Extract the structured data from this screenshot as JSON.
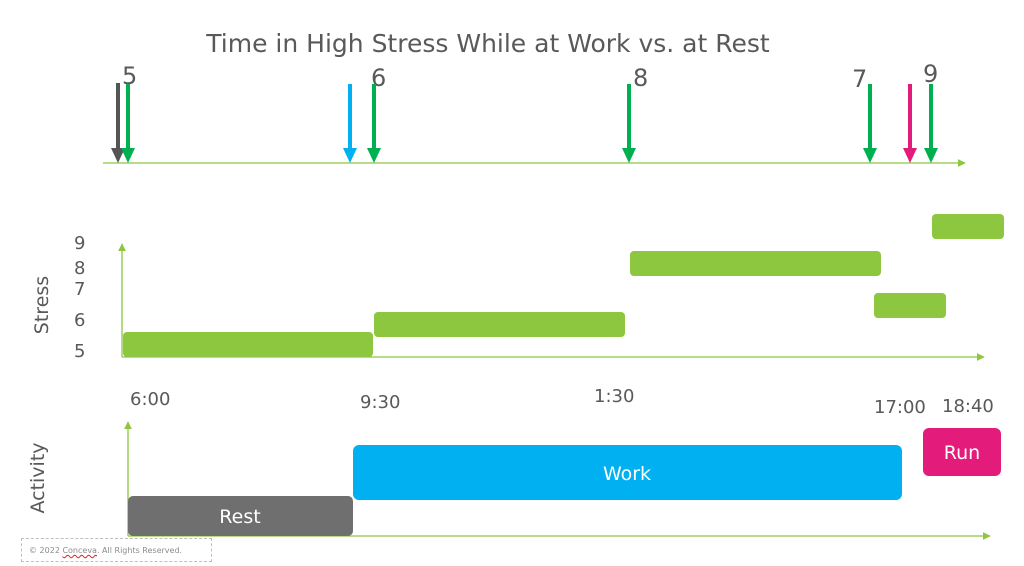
{
  "title": "Time in High Stress While at Work vs. at Rest",
  "colors": {
    "stress_bar": "#8dc63f",
    "axis": "#8dc63f",
    "green_arrow": "#00b050",
    "dark_arrow": "#555555",
    "blue_arrow": "#00b0f0",
    "pink_arrow": "#e31b7b",
    "rest": "#6f6f6f",
    "work": "#00b0f0",
    "run": "#e31b7b",
    "text": "#595959"
  },
  "top_markers": {
    "numbers": [
      "5",
      "6",
      "8",
      "7",
      "9"
    ],
    "arrows": [
      {
        "name": "dark-arrow",
        "color": "dark_arrow"
      },
      {
        "name": "green-arrow-1",
        "color": "green_arrow"
      },
      {
        "name": "blue-arrow",
        "color": "blue_arrow"
      },
      {
        "name": "green-arrow-2",
        "color": "green_arrow"
      },
      {
        "name": "green-arrow-3",
        "color": "green_arrow"
      },
      {
        "name": "green-arrow-4",
        "color": "green_arrow"
      },
      {
        "name": "pink-arrow",
        "color": "pink_arrow"
      },
      {
        "name": "green-arrow-5",
        "color": "green_arrow"
      }
    ]
  },
  "stress_panel": {
    "ylabel": "Stress",
    "ytick_labels": [
      "9",
      "8",
      "7",
      "6",
      "5"
    ],
    "bars": [
      {
        "level": 5
      },
      {
        "level": 6
      },
      {
        "level": 8
      },
      {
        "level": 7
      },
      {
        "level": 9
      }
    ]
  },
  "time_labels": [
    "6:00",
    "9:30",
    "1:30",
    "17:00",
    "18:40"
  ],
  "activity_panel": {
    "ylabel": "Activity",
    "bars": [
      {
        "label": "Rest",
        "color": "rest"
      },
      {
        "label": "Work",
        "color": "work"
      },
      {
        "label": "Run",
        "color": "run"
      }
    ]
  },
  "footer": {
    "prefix": "© 2022 ",
    "brand": "Conceva",
    "suffix": ". All Rights Reserved."
  }
}
